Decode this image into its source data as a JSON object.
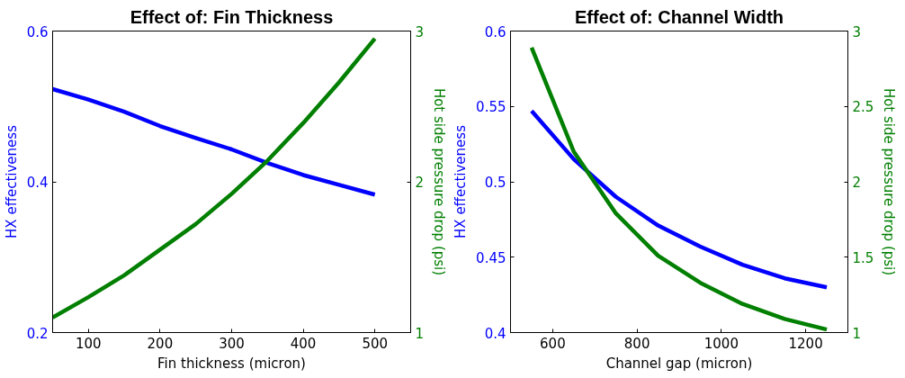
{
  "chart_data": [
    {
      "type": "line",
      "title": "Effect of: Fin Thickness",
      "xlabel": "Fin thickness (micron)",
      "ylabel": "HX effectiveness",
      "y2label": "Hot side pressure drop (psi)",
      "xlim": [
        50,
        550
      ],
      "xticks": [
        100,
        200,
        300,
        400,
        500
      ],
      "ylim": [
        0.2,
        0.6
      ],
      "yticks": [
        0.2,
        0.4,
        0.6
      ],
      "y2lim": [
        1,
        3
      ],
      "y2ticks": [
        1,
        2,
        3
      ],
      "grid": false,
      "line_style": "solid",
      "marker": "none",
      "x": [
        50,
        100,
        150,
        200,
        250,
        300,
        350,
        400,
        450,
        500
      ],
      "series": [
        {
          "color": "#0000ff",
          "values": [
            0.523,
            0.509,
            0.493,
            0.474,
            0.458,
            0.443,
            0.425,
            0.409,
            0.396,
            0.383
          ]
        },
        {
          "color": "#007f00",
          "axis": "y2",
          "values": [
            1.1,
            1.235,
            1.38,
            1.55,
            1.72,
            1.92,
            2.14,
            2.39,
            2.66,
            2.95
          ]
        }
      ]
    },
    {
      "type": "line",
      "title": "Effect of: Channel Width",
      "xlabel": "Channel gap (micron)",
      "ylabel": "HX effectiveness",
      "y2label": "Hot side pressure drop (psi)",
      "xlim": [
        500,
        1300
      ],
      "xticks": [
        600,
        800,
        1000,
        1200
      ],
      "ylim": [
        0.4,
        0.6
      ],
      "yticks": [
        0.4,
        0.45,
        0.5,
        0.55,
        0.6
      ],
      "y2lim": [
        1,
        3
      ],
      "y2ticks": [
        1,
        1.5,
        2,
        2.5,
        3
      ],
      "grid": false,
      "line_style": "solid",
      "marker": "none",
      "x": [
        550,
        650,
        750,
        850,
        950,
        1050,
        1150,
        1250
      ],
      "series": [
        {
          "color": "#0000ff",
          "values": [
            0.547,
            0.515,
            0.49,
            0.471,
            0.457,
            0.445,
            0.436,
            0.43
          ]
        },
        {
          "color": "#007f00",
          "axis": "y2",
          "values": [
            2.89,
            2.2,
            1.79,
            1.51,
            1.33,
            1.19,
            1.09,
            1.02
          ]
        }
      ]
    }
  ]
}
